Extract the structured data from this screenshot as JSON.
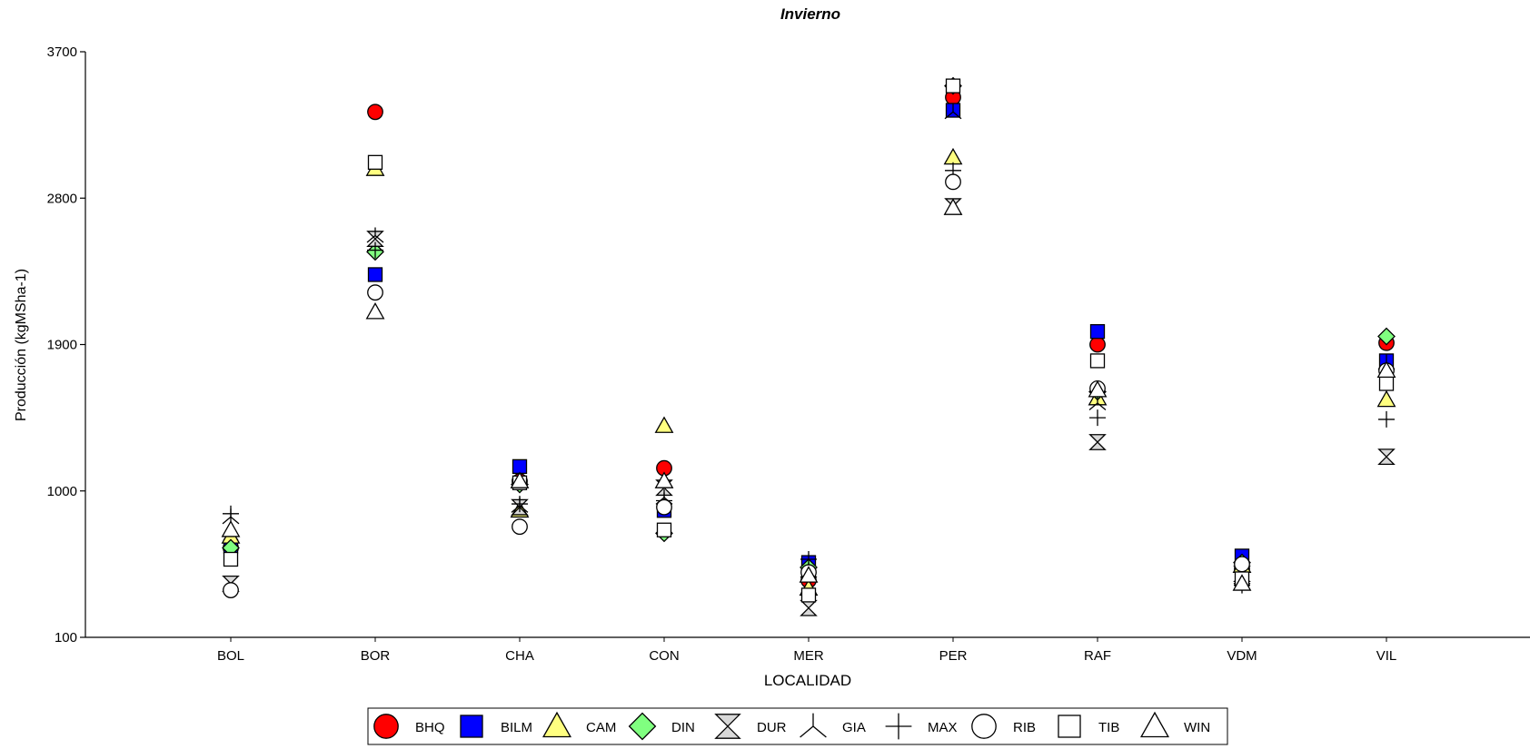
{
  "chart_data": {
    "type": "scatter",
    "title": "Invierno",
    "xlabel": "LOCALIDAD",
    "ylabel": "Producción (kgMSha-1)",
    "categories": [
      "BOL",
      "BOR",
      "CHA",
      "CON",
      "MER",
      "PER",
      "RAF",
      "VDM",
      "VIL"
    ],
    "ylim": [
      100,
      3700
    ],
    "yticks": [
      100,
      1000,
      1900,
      2800,
      3700
    ],
    "grid": false,
    "legend_position": "bottom",
    "series": [
      {
        "name": "BHQ",
        "marker": "circle",
        "fill": "#ff0000",
        "values": [
          650,
          3330,
          1060,
          1140,
          450,
          3420,
          1900,
          520,
          1910
        ]
      },
      {
        "name": "BILM",
        "marker": "square",
        "fill": "#0000ff",
        "values": [
          660,
          2330,
          1150,
          880,
          560,
          3340,
          1980,
          600,
          1800
        ]
      },
      {
        "name": "CAM",
        "marker": "triangle",
        "fill": "#ffff80",
        "values": [
          720,
          2980,
          880,
          1400,
          400,
          3050,
          1570,
          540,
          1560
        ]
      },
      {
        "name": "DIN",
        "marker": "diamond",
        "fill": "#80ff80",
        "values": [
          650,
          2470,
          1040,
          740,
          530,
          3490,
          1610,
          560,
          1950
        ]
      },
      {
        "name": "DUR",
        "marker": "hourglass",
        "fill": "#d9d9d9",
        "values": [
          430,
          2550,
          900,
          1020,
          280,
          2750,
          1300,
          490,
          1210
        ]
      },
      {
        "name": "GIA",
        "marker": "tristar",
        "fill": "none",
        "values": [
          840,
          2570,
          910,
          960,
          510,
          3330,
          1540,
          470,
          1790
        ]
      },
      {
        "name": "MAX",
        "marker": "plus",
        "fill": "none",
        "values": [
          860,
          2480,
          920,
          940,
          580,
          2970,
          1450,
          420,
          1440
        ]
      },
      {
        "name": "RIB",
        "marker": "open-circle",
        "fill": "none",
        "values": [
          390,
          2220,
          780,
          900,
          500,
          2900,
          1630,
          550,
          1740
        ]
      },
      {
        "name": "TIB",
        "marker": "open-square",
        "fill": "none",
        "values": [
          580,
          3020,
          1050,
          760,
          360,
          3490,
          1800,
          460,
          1660
        ]
      },
      {
        "name": "WIN",
        "marker": "open-triangle",
        "fill": "none",
        "values": [
          760,
          2100,
          1060,
          1060,
          480,
          2740,
          1620,
          430,
          1740
        ]
      }
    ]
  }
}
